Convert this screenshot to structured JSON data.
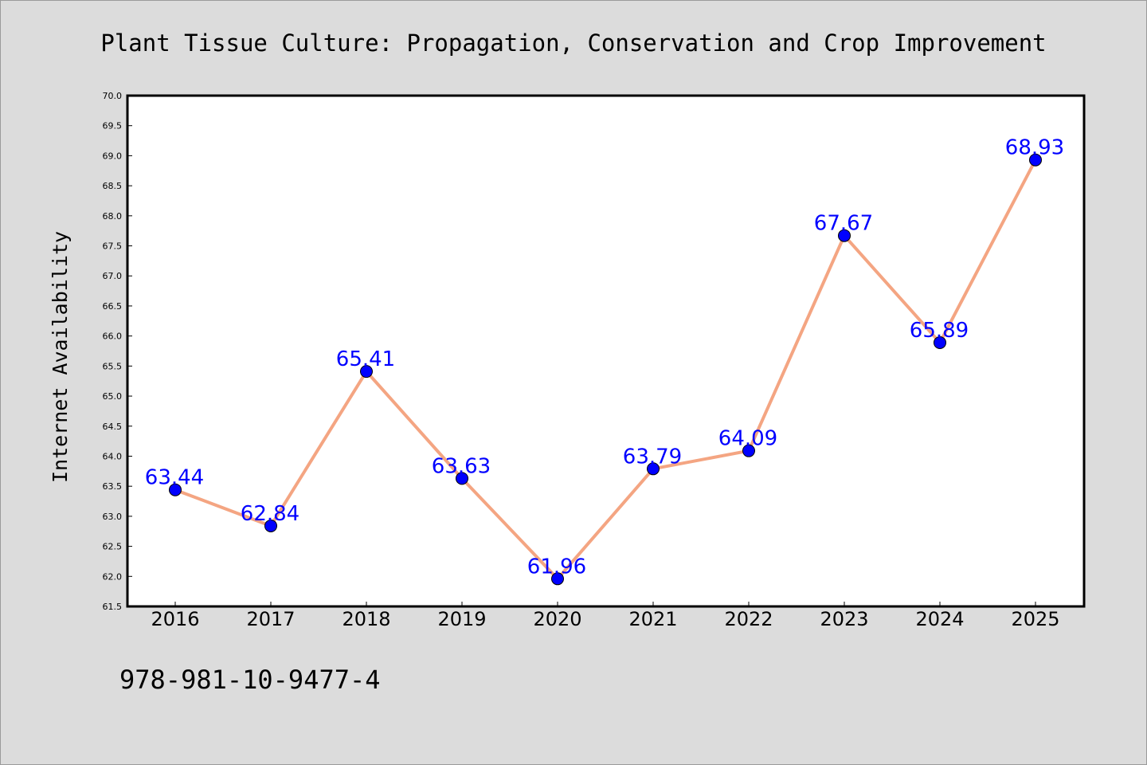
{
  "chart_data": {
    "type": "line",
    "title": "Plant Tissue Culture: Propagation, Conservation and Crop Improvement",
    "xlabel": "",
    "ylabel": "Internet Availability",
    "categories": [
      "2016",
      "2017",
      "2018",
      "2019",
      "2020",
      "2021",
      "2022",
      "2023",
      "2024",
      "2025"
    ],
    "series": [
      {
        "values": [
          63.44,
          62.84,
          65.41,
          63.63,
          61.96,
          63.79,
          64.09,
          67.67,
          65.89,
          68.93
        ]
      }
    ],
    "data_labels": [
      "63.44",
      "62.84",
      "65.41",
      "63.63",
      "61.96",
      "63.79",
      "64.09",
      "67.67",
      "65.89",
      "68.93"
    ],
    "ylim": [
      61.5,
      70.0
    ],
    "yticks": [
      "61.5",
      "62.0",
      "62.5",
      "63.0",
      "63.5",
      "64.0",
      "64.5",
      "65.0",
      "65.5",
      "66.0",
      "66.5",
      "67.0",
      "67.5",
      "68.0",
      "68.5",
      "69.0",
      "69.5",
      "70.0"
    ],
    "grid": false,
    "line_color": "#f4a582",
    "marker_color": "#0000ff",
    "label_color": "#0000ff",
    "background_color": "#dcdcdc",
    "plot_background": "#ffffff"
  },
  "footer": {
    "text": "978-981-10-9477-4"
  }
}
